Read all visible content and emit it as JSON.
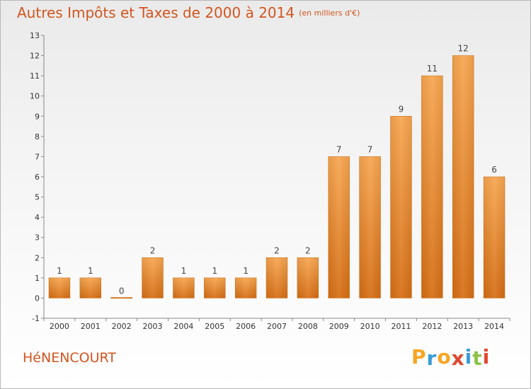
{
  "title": "Autres Impôts et Taxes de 2000 à 2014",
  "unit": "(en milliers d'€)",
  "commune": "HéNENCOURT",
  "brand": {
    "letters": [
      "P",
      "r",
      "o",
      "x",
      "i",
      "t",
      "i"
    ],
    "colors": [
      "#f5a623",
      "#3a9bd9",
      "#f5a623",
      "#e2472f",
      "#3a9bd9",
      "#8bc34a",
      "#e2472f"
    ]
  },
  "chart_data": {
    "type": "bar",
    "categories": [
      "2000",
      "2001",
      "2002",
      "2003",
      "2004",
      "2005",
      "2006",
      "2007",
      "2008",
      "2009",
      "2010",
      "2011",
      "2012",
      "2013",
      "2014"
    ],
    "values": [
      1,
      1,
      0,
      2,
      1,
      1,
      1,
      2,
      2,
      7,
      7,
      9,
      11,
      12,
      6
    ],
    "ylim": [
      -1,
      13
    ],
    "yticks": [
      -1,
      0,
      1,
      2,
      3,
      4,
      5,
      6,
      7,
      8,
      9,
      10,
      11,
      12,
      13
    ],
    "bar_color": "#ee8e33",
    "grid": false
  }
}
